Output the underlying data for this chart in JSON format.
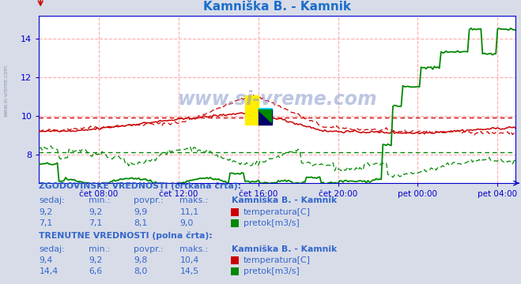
{
  "title": "Kamniška B. - Kamnik",
  "title_color": "#1a6ecc",
  "bg_color": "#d8dce8",
  "plot_bg_color": "#ffffff",
  "grid_color": "#ffaaaa",
  "axis_color": "#0000cc",
  "border_color": "#0000cc",
  "watermark": "www.si-vreme.com",
  "ylim_low": 6.5,
  "ylim_high": 15.2,
  "yticks": [
    8,
    10,
    12,
    14
  ],
  "x_labels": [
    "čet 08:00",
    "čet 12:00",
    "čet 16:00",
    "čet 20:00",
    "pet 00:00",
    "pet 04:00"
  ],
  "n_points": 288,
  "temp_hist_avg": 9.9,
  "flow_hist_avg": 8.1,
  "red_color": "#cc0000",
  "green_color": "#008800",
  "table_color": "#3366cc",
  "table_bold_color": "#1144aa",
  "hist_section": "ZGODOVINSKE VREDNOSTI (črtkana črta):",
  "curr_section": "TRENUTNE VREDNOSTI (polna črta):",
  "col_headers": [
    "sedaj:",
    "min.:",
    "povpr.:",
    "maks.:"
  ],
  "station_name": "Kamniška B. - Kamnik",
  "hist_temp_vals": [
    "9,2",
    "9,2",
    "9,9",
    "11,1"
  ],
  "hist_flow_vals": [
    "7,1",
    "7,1",
    "8,1",
    "9,0"
  ],
  "curr_temp_vals": [
    "9,4",
    "9,2",
    "9,8",
    "10,4"
  ],
  "curr_flow_vals": [
    "14,4",
    "6,6",
    "8,0",
    "14,5"
  ],
  "temp_label": "temperatura[C]",
  "flow_label": "pretok[m3/s]",
  "sidebar_text": "www.si-vreme.com"
}
